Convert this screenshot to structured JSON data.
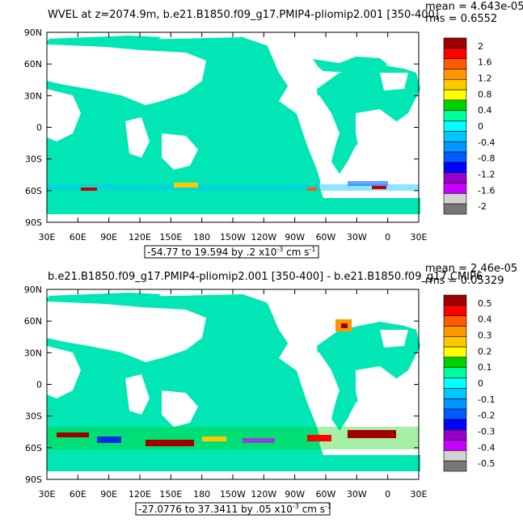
{
  "panels": [
    {
      "title": "WVEL at z=2074.9m, b.e21.B1850.f09_g17.PMIP4-pliomip2.001 [350-400]",
      "mean": "mean = 4.643e-05",
      "rms": "rms = 0.6552",
      "range": "-54.77 to 19.594 by .2 x10",
      "range_exp": "-3",
      "range_unit": " cm s",
      "range_unit_exp": "-1",
      "colorbar_labels": [
        "2",
        "1.6",
        "1.2",
        "0.8",
        "0.4",
        "0",
        "-0.4",
        "-0.8",
        "-1.2",
        "-1.6",
        "-2"
      ]
    },
    {
      "title": "b.e21.B1850.f09_g17.PMIP4-pliomip2.001 [350-400] - b.e21.B1850.f09_g17.CMIP6",
      "mean": "mean = 2.46e-05",
      "rms": "rms = 0.05329",
      "range": "-27.0776 to 37.3411 by .05 x10",
      "range_exp": "-3",
      "range_unit": " cm s",
      "range_unit_exp": "-1",
      "colorbar_labels": [
        "0.5",
        "0.4",
        "0.3",
        "0.2",
        "0.1",
        "0",
        "-0.1",
        "-0.2",
        "-0.3",
        "-0.4",
        "-0.5"
      ]
    }
  ],
  "lat_labels": [
    "90N",
    "60N",
    "30N",
    "0",
    "30S",
    "60S",
    "90S"
  ],
  "lon_labels": [
    "30E",
    "60E",
    "90E",
    "120E",
    "150E",
    "180",
    "150W",
    "120W",
    "90W",
    "60W",
    "30W",
    "0",
    "30E"
  ],
  "colorbar_colors": [
    "#a00000",
    "#ff0000",
    "#ff5a00",
    "#ff9600",
    "#ffc800",
    "#ffff00",
    "#00d200",
    "#00ffa0",
    "#00ffff",
    "#00c8ff",
    "#0096ff",
    "#005aff",
    "#0000ff",
    "#9600c8",
    "#c800ff",
    "#d2d2d2",
    "#787878"
  ]
}
